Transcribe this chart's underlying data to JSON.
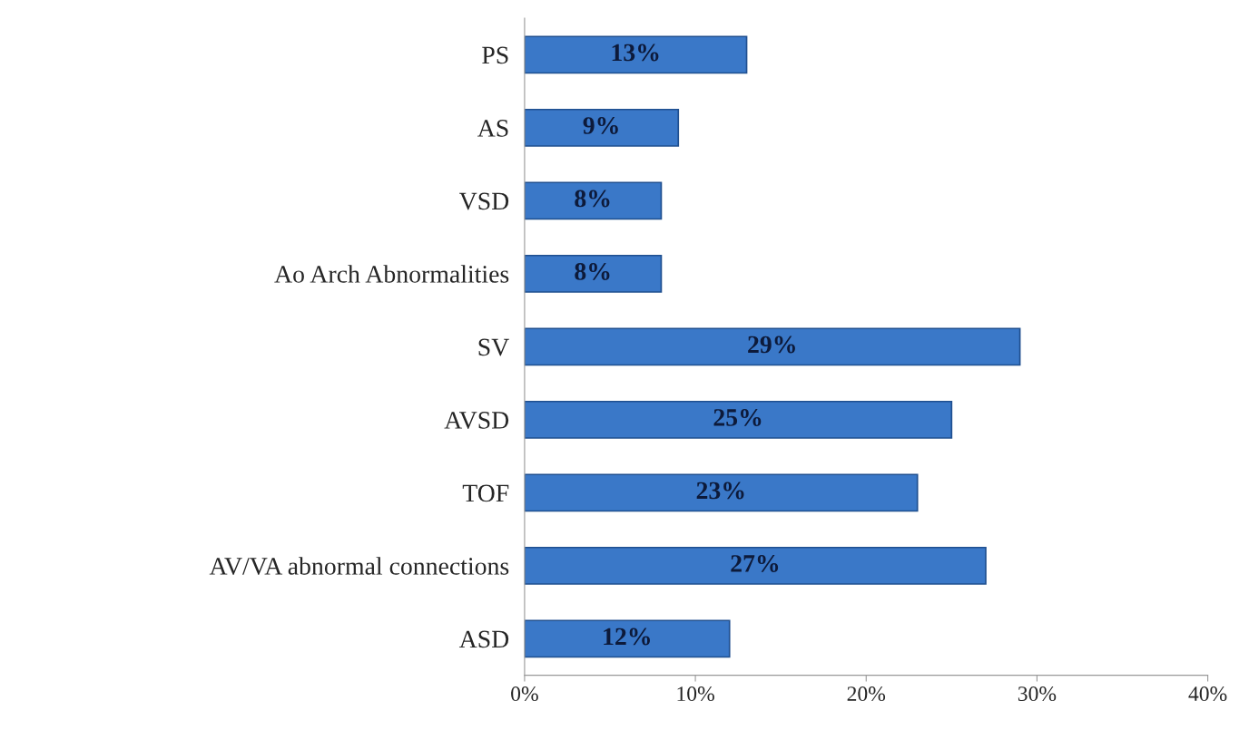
{
  "chart_data": {
    "type": "bar",
    "orientation": "horizontal",
    "categories": [
      "PS",
      "AS",
      "VSD",
      "Ao Arch Abnormalities",
      "SV",
      "AVSD",
      "TOF",
      "AV/VA abnormal connections",
      "ASD"
    ],
    "values": [
      13,
      9,
      8,
      8,
      29,
      25,
      23,
      27,
      12
    ],
    "value_labels": [
      "13%",
      "9%",
      "8%",
      "8%",
      "29%",
      "25%",
      "23%",
      "27%",
      "12%"
    ],
    "color": "#3a78c8",
    "xlim": [
      0,
      40
    ],
    "xticks": [
      {
        "value": 0,
        "label": "0%"
      },
      {
        "value": 10,
        "label": "10%"
      },
      {
        "value": 20,
        "label": "20%"
      },
      {
        "value": 30,
        "label": "30%"
      },
      {
        "value": 40,
        "label": "40%"
      }
    ],
    "grid": false
  }
}
